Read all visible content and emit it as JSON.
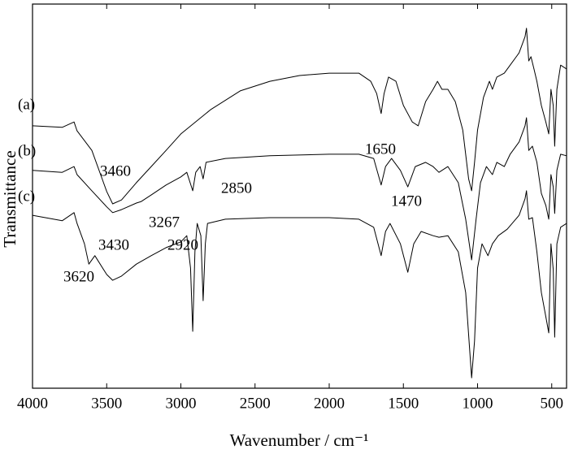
{
  "chart_data": {
    "type": "line",
    "xlabel": "Wavenumber / cm⁻¹",
    "ylabel": "Transmittance",
    "xlim": [
      4000,
      400
    ],
    "ylim": [
      0,
      100
    ],
    "xticks": [
      4000,
      3500,
      3000,
      2500,
      2000,
      1500,
      1000,
      500
    ],
    "annotations": [
      "1650",
      "3460",
      "2850",
      "1470",
      "3267",
      "3430",
      "2920",
      "3620"
    ],
    "series": [
      {
        "name": "(a)",
        "color": "#000000",
        "x": [
          4000,
          3800,
          3720,
          3700,
          3600,
          3500,
          3460,
          3400,
          3300,
          3200,
          3100,
          3000,
          2800,
          2600,
          2400,
          2200,
          2000,
          1800,
          1720,
          1680,
          1650,
          1630,
          1600,
          1550,
          1500,
          1440,
          1400,
          1350,
          1300,
          1270,
          1240,
          1200,
          1150,
          1100,
          1060,
          1040,
          1020,
          1000,
          960,
          920,
          900,
          870,
          820,
          780,
          720,
          680,
          670,
          655,
          640,
          620,
          600,
          570,
          540,
          520,
          505,
          490,
          480,
          465,
          440,
          400
        ],
        "values": [
          68.3,
          67.9,
          69.3,
          67.0,
          61.9,
          51.2,
          48.0,
          49.0,
          53.5,
          57.7,
          61.9,
          66.2,
          72.5,
          77.4,
          79.9,
          81.4,
          82.0,
          82.0,
          79.9,
          76.7,
          71.5,
          76.7,
          81.0,
          79.9,
          73.6,
          69.3,
          68.3,
          74.6,
          77.8,
          79.9,
          77.8,
          77.8,
          74.6,
          67.2,
          54.5,
          51.4,
          58.8,
          67.2,
          75.7,
          79.9,
          77.8,
          81.0,
          82.0,
          84.1,
          87.3,
          91.5,
          93.7,
          85.2,
          86.3,
          83.1,
          79.9,
          73.6,
          69.3,
          66.2,
          77.8,
          73.6,
          63.0,
          77.8,
          84.1,
          83.1
        ]
      },
      {
        "name": "(b)",
        "color": "#000000",
        "x": [
          4000,
          3800,
          3720,
          3700,
          3600,
          3500,
          3460,
          3400,
          3300,
          3267,
          3200,
          3100,
          3000,
          2960,
          2920,
          2900,
          2870,
          2850,
          2830,
          2700,
          2400,
          2000,
          1800,
          1700,
          1650,
          1620,
          1580,
          1520,
          1470,
          1420,
          1350,
          1300,
          1260,
          1200,
          1130,
          1080,
          1040,
          1010,
          980,
          940,
          900,
          870,
          820,
          780,
          720,
          680,
          670,
          655,
          630,
          600,
          570,
          540,
          520,
          505,
          490,
          480,
          465,
          440,
          400
        ],
        "values": [
          56.7,
          56.2,
          57.7,
          55.6,
          51.4,
          47.2,
          45.7,
          46.5,
          48.2,
          48.6,
          50.3,
          52.9,
          55.0,
          56.2,
          51.4,
          56.2,
          57.7,
          54.5,
          58.8,
          59.8,
          60.5,
          60.9,
          60.9,
          59.8,
          52.9,
          57.7,
          59.8,
          56.7,
          52.4,
          57.7,
          58.8,
          57.7,
          56.2,
          57.7,
          53.5,
          44.0,
          33.4,
          44.0,
          53.5,
          57.7,
          55.6,
          58.8,
          57.7,
          60.9,
          64.1,
          68.3,
          70.4,
          61.9,
          63.0,
          58.8,
          50.7,
          47.6,
          44.0,
          55.6,
          52.4,
          45.5,
          56.7,
          60.9,
          60.5
        ]
      },
      {
        "name": "(c)",
        "color": "#000000",
        "x": [
          4000,
          3800,
          3720,
          3700,
          3650,
          3620,
          3580,
          3500,
          3460,
          3400,
          3300,
          3200,
          3100,
          3000,
          2960,
          2935,
          2920,
          2905,
          2890,
          2865,
          2850,
          2835,
          2820,
          2700,
          2400,
          2000,
          1800,
          1700,
          1650,
          1620,
          1590,
          1520,
          1470,
          1430,
          1380,
          1300,
          1260,
          1200,
          1130,
          1080,
          1040,
          1020,
          1000,
          970,
          930,
          900,
          860,
          800,
          720,
          680,
          670,
          655,
          630,
          600,
          570,
          540,
          520,
          505,
          490,
          480,
          465,
          440,
          400
        ],
        "values": [
          45.0,
          43.6,
          45.7,
          42.9,
          37.6,
          32.3,
          34.5,
          29.6,
          28.1,
          29.2,
          32.3,
          34.5,
          36.6,
          38.1,
          39.7,
          31.3,
          14.8,
          35.5,
          42.9,
          39.7,
          22.8,
          37.6,
          42.9,
          44.0,
          44.4,
          44.4,
          44.0,
          41.9,
          34.5,
          40.8,
          42.9,
          37.6,
          30.2,
          37.6,
          40.8,
          39.7,
          39.3,
          39.7,
          35.5,
          24.9,
          2.7,
          12.3,
          31.3,
          37.6,
          34.5,
          37.6,
          39.7,
          41.4,
          45.0,
          49.3,
          51.4,
          44.0,
          44.4,
          35.5,
          24.9,
          18.6,
          14.4,
          37.6,
          30.9,
          13.3,
          37.6,
          41.9,
          42.9
        ]
      }
    ]
  }
}
